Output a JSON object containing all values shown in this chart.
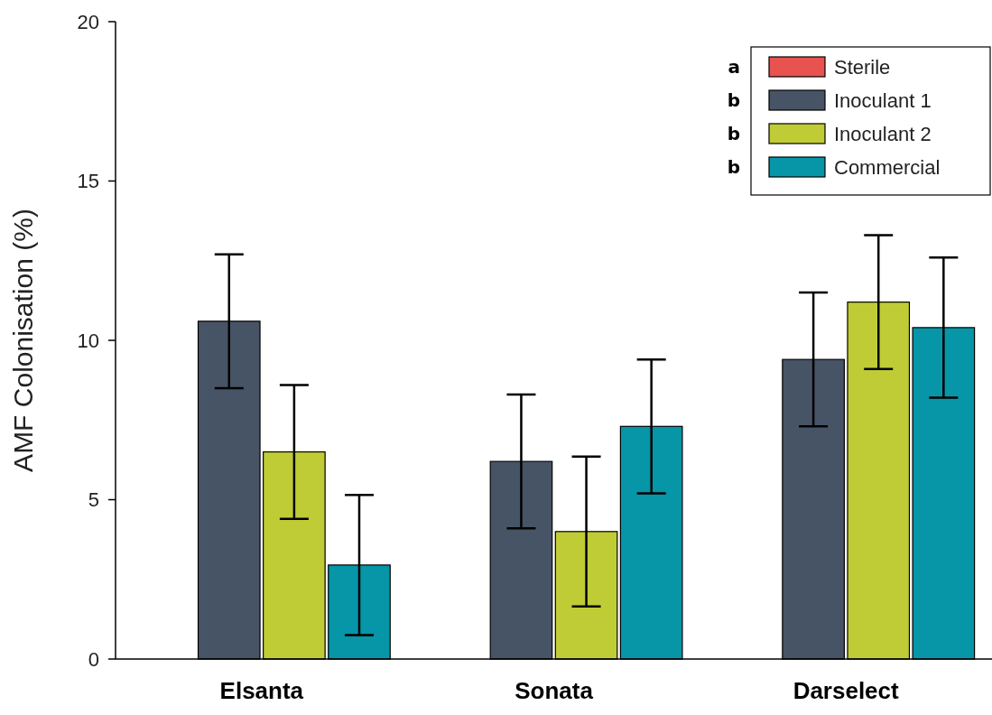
{
  "chart_data": {
    "type": "bar",
    "ylabel": "AMF Colonisation (%)",
    "categories": [
      "Elsanta",
      "Sonata",
      "Darselect"
    ],
    "series": [
      {
        "name": "Sterile",
        "color": "#e8534f",
        "values": [
          0,
          0,
          0
        ],
        "errors": [
          null,
          null,
          null
        ]
      },
      {
        "name": "Inoculant 1",
        "color": "#475466",
        "values": [
          10.6,
          6.2,
          9.4
        ],
        "errors": [
          2.1,
          2.1,
          2.1
        ]
      },
      {
        "name": "Inoculant 2",
        "color": "#c0cc35",
        "values": [
          6.5,
          4.0,
          11.2
        ],
        "errors": [
          2.1,
          2.35,
          2.1
        ]
      },
      {
        "name": "Commercial",
        "color": "#0795a8",
        "values": [
          2.95,
          7.3,
          10.4
        ],
        "errors": [
          2.2,
          2.1,
          2.2
        ]
      }
    ],
    "ylim": [
      0,
      20
    ],
    "yticks": [
      0,
      5,
      10,
      15,
      20
    ],
    "grid": false,
    "legend": "top right",
    "annotations": [
      "a",
      "b",
      "b",
      "b"
    ]
  }
}
